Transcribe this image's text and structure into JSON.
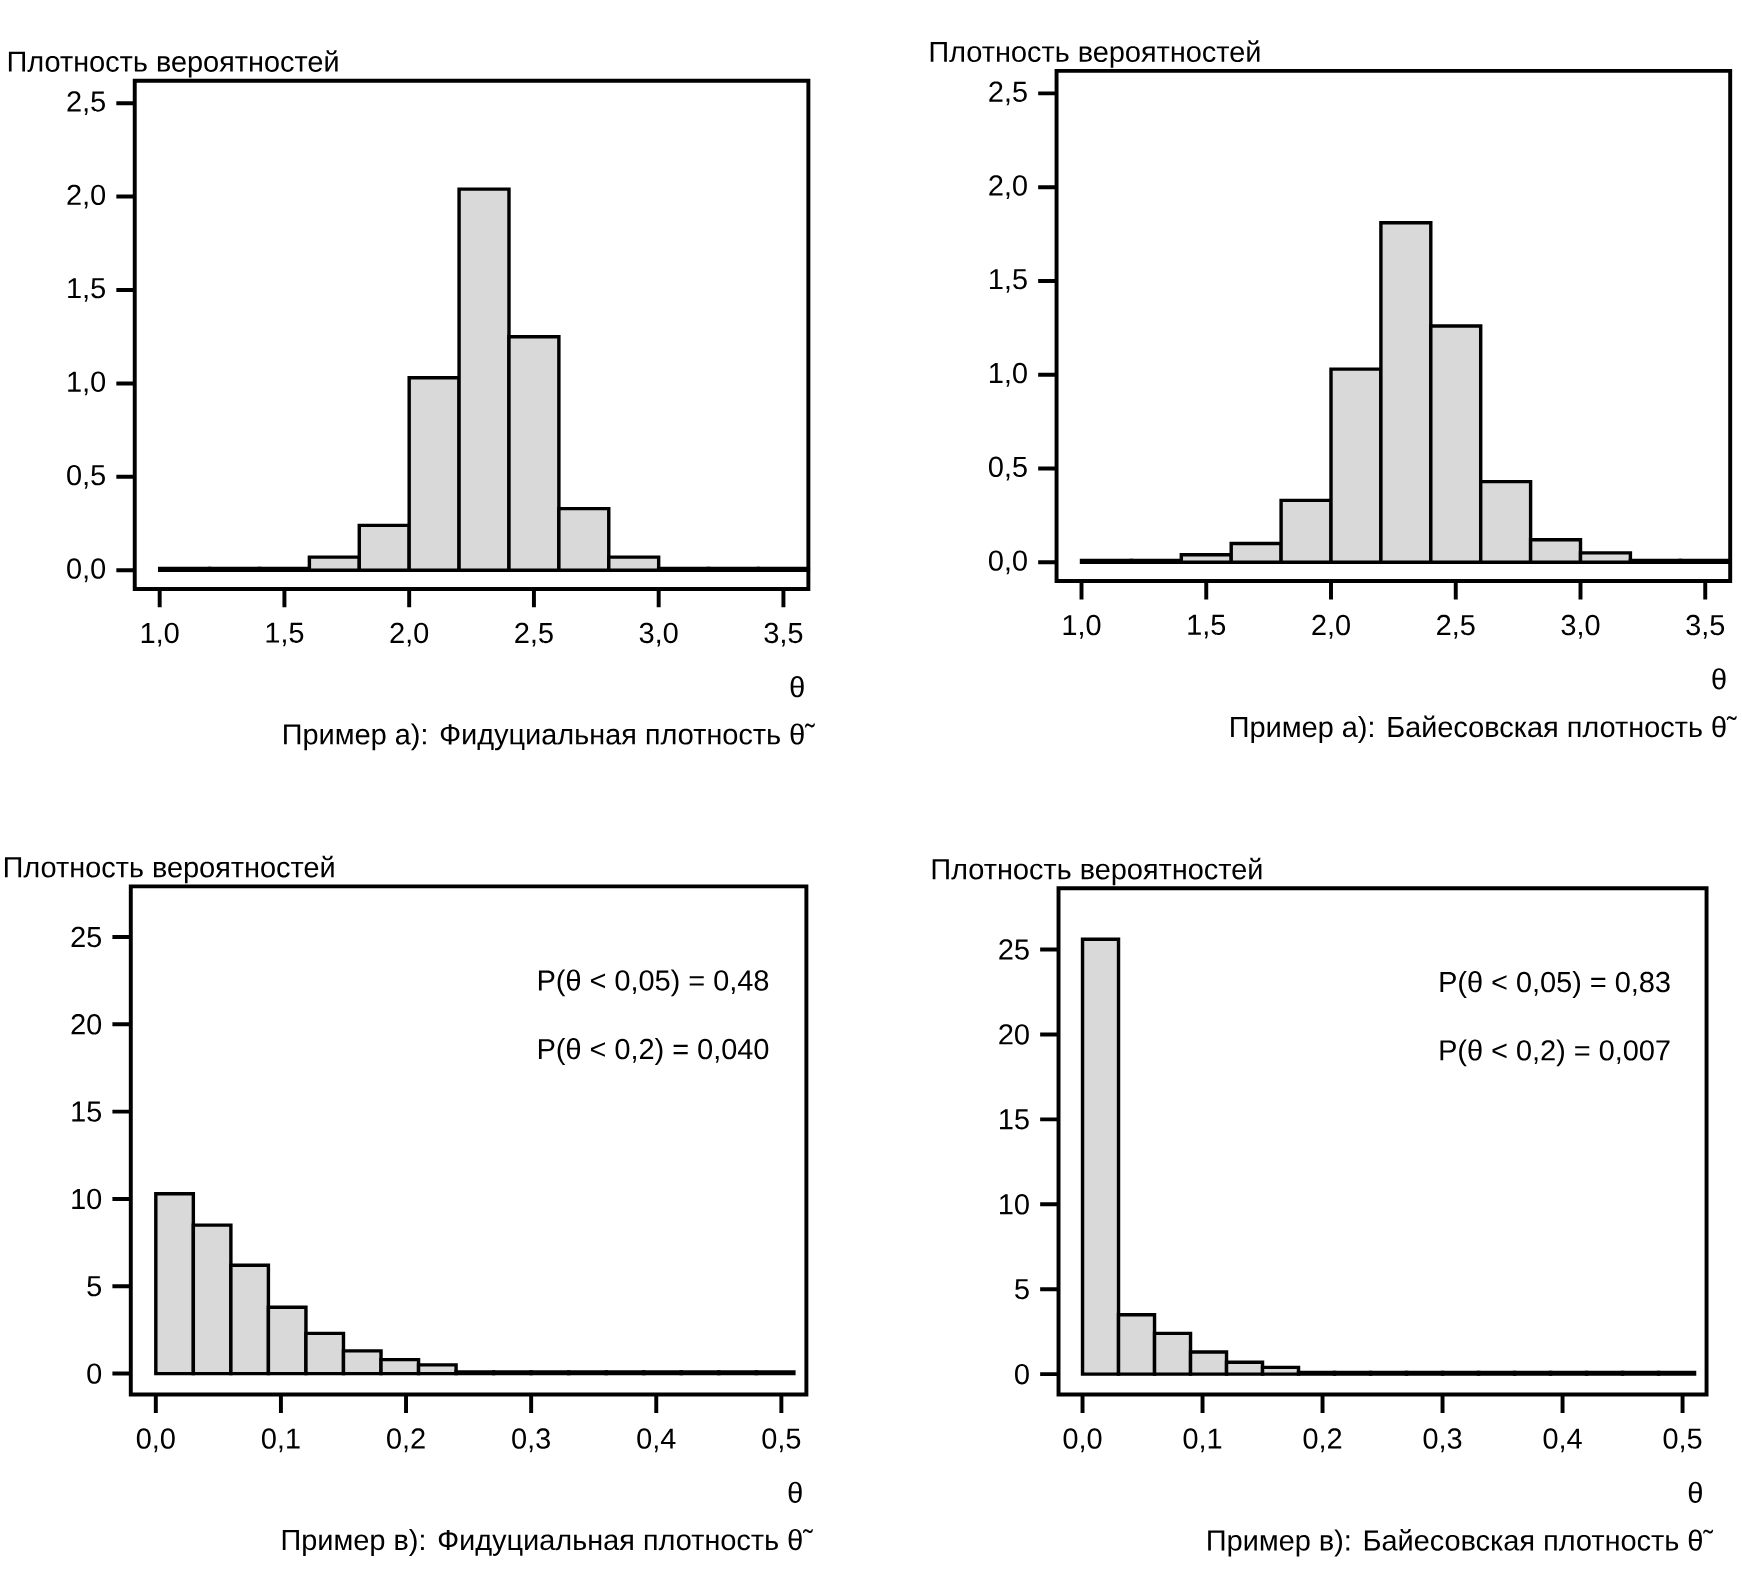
{
  "chart_data": [
    {
      "type": "histogram",
      "title": "Пример а): Фидуциальная плотность θ̃",
      "ylabel": "Плотность вероятностей",
      "xlabel": "θ",
      "color": "#d9d9d9",
      "bins": [
        1.0,
        1.2,
        1.4,
        1.6,
        1.8,
        2.0,
        2.2,
        2.4,
        2.6,
        2.8,
        3.0,
        3.2,
        3.4,
        3.6
      ],
      "values": [
        0.01,
        0.01,
        0.01,
        0.07,
        0.24,
        1.03,
        2.04,
        1.25,
        0.33,
        0.07,
        0.01,
        0.01,
        0.01
      ],
      "xlim": [
        0.9,
        3.6
      ],
      "ylim": [
        -0.1,
        2.62
      ],
      "xticks": [
        {
          "value": 1.0,
          "label": "1,0"
        },
        {
          "value": 1.5,
          "label": "1,5"
        },
        {
          "value": 2.0,
          "label": "2,0"
        },
        {
          "value": 2.5,
          "label": "2,5"
        },
        {
          "value": 3.0,
          "label": "3,0"
        },
        {
          "value": 3.5,
          "label": "3,5"
        }
      ],
      "yticks": [
        {
          "value": 0.0,
          "label": "0,0"
        },
        {
          "value": 0.5,
          "label": "0,5"
        },
        {
          "value": 1.0,
          "label": "1,0"
        },
        {
          "value": 1.5,
          "label": "1,5"
        },
        {
          "value": 2.0,
          "label": "2,0"
        },
        {
          "value": 2.5,
          "label": "2,5"
        }
      ]
    },
    {
      "type": "histogram",
      "title": "Пример а): Байесовская плотность θ̃",
      "ylabel": "Плотность вероятностей",
      "xlabel": "θ",
      "color": "#d9d9d9",
      "bins": [
        1.0,
        1.2,
        1.4,
        1.6,
        1.8,
        2.0,
        2.2,
        2.4,
        2.6,
        2.8,
        3.0,
        3.2,
        3.4,
        3.6
      ],
      "values": [
        0.01,
        0.01,
        0.04,
        0.1,
        0.33,
        1.03,
        1.81,
        1.26,
        0.43,
        0.12,
        0.05,
        0.01,
        0.01
      ],
      "xlim": [
        0.9,
        3.6
      ],
      "ylim": [
        -0.1,
        2.62
      ],
      "xticks": [
        {
          "value": 1.0,
          "label": "1,0"
        },
        {
          "value": 1.5,
          "label": "1,5"
        },
        {
          "value": 2.0,
          "label": "2,0"
        },
        {
          "value": 2.5,
          "label": "2,5"
        },
        {
          "value": 3.0,
          "label": "3,0"
        },
        {
          "value": 3.5,
          "label": "3,5"
        }
      ],
      "yticks": [
        {
          "value": 0.0,
          "label": "0,0"
        },
        {
          "value": 0.5,
          "label": "0,5"
        },
        {
          "value": 1.0,
          "label": "1,0"
        },
        {
          "value": 1.5,
          "label": "1,5"
        },
        {
          "value": 2.0,
          "label": "2,0"
        },
        {
          "value": 2.5,
          "label": "2,5"
        }
      ]
    },
    {
      "type": "histogram",
      "title": "Пример в): Фидуциальная плотность θ̃",
      "ylabel": "Плотность вероятностей",
      "xlabel": "θ",
      "color": "#d9d9d9",
      "bins": [
        0.0,
        0.03,
        0.06,
        0.09,
        0.12,
        0.15,
        0.18,
        0.21,
        0.24,
        0.27,
        0.3,
        0.33,
        0.36,
        0.39,
        0.42,
        0.45,
        0.48,
        0.51
      ],
      "values": [
        10.3,
        8.5,
        6.2,
        3.8,
        2.3,
        1.3,
        0.8,
        0.5,
        0.1,
        0.1,
        0.1,
        0.1,
        0.1,
        0.1,
        0.1,
        0.1,
        0.1
      ],
      "xlim": [
        -0.02,
        0.52
      ],
      "ylim": [
        -1.2,
        27.9
      ],
      "xticks": [
        {
          "value": 0.0,
          "label": "0,0"
        },
        {
          "value": 0.1,
          "label": "0,1"
        },
        {
          "value": 0.2,
          "label": "0,2"
        },
        {
          "value": 0.3,
          "label": "0,3"
        },
        {
          "value": 0.4,
          "label": "0,4"
        },
        {
          "value": 0.5,
          "label": "0,5"
        }
      ],
      "yticks": [
        0,
        5,
        10,
        15,
        20,
        25
      ],
      "annotations": [
        "P(θ < 0,05) = 0,48",
        "P(θ < 0,2) = 0,040"
      ]
    },
    {
      "type": "histogram",
      "title": "Пример в): Байесовская плотность θ̃",
      "ylabel": "Плотность вероятностей",
      "xlabel": "θ",
      "color": "#d9d9d9",
      "bins": [
        0.0,
        0.03,
        0.06,
        0.09,
        0.12,
        0.15,
        0.18,
        0.21,
        0.24,
        0.27,
        0.3,
        0.33,
        0.36,
        0.39,
        0.42,
        0.45,
        0.48,
        0.51
      ],
      "values": [
        25.6,
        3.5,
        2.4,
        1.3,
        0.7,
        0.4,
        0.1,
        0.1,
        0.1,
        0.1,
        0.1,
        0.1,
        0.1,
        0.1,
        0.1,
        0.1,
        0.1
      ],
      "xlim": [
        -0.02,
        0.52
      ],
      "ylim": [
        -1.2,
        28.6
      ],
      "xticks": [
        {
          "value": 0.0,
          "label": "0,0"
        },
        {
          "value": 0.1,
          "label": "0,1"
        },
        {
          "value": 0.2,
          "label": "0,2"
        },
        {
          "value": 0.3,
          "label": "0,3"
        },
        {
          "value": 0.4,
          "label": "0,4"
        },
        {
          "value": 0.5,
          "label": "0,5"
        }
      ],
      "yticks": [
        0,
        5,
        10,
        15,
        20,
        25
      ],
      "annotations": [
        "P(θ < 0,05) = 0,83",
        "P(θ < 0,2) = 0,007"
      ]
    }
  ]
}
